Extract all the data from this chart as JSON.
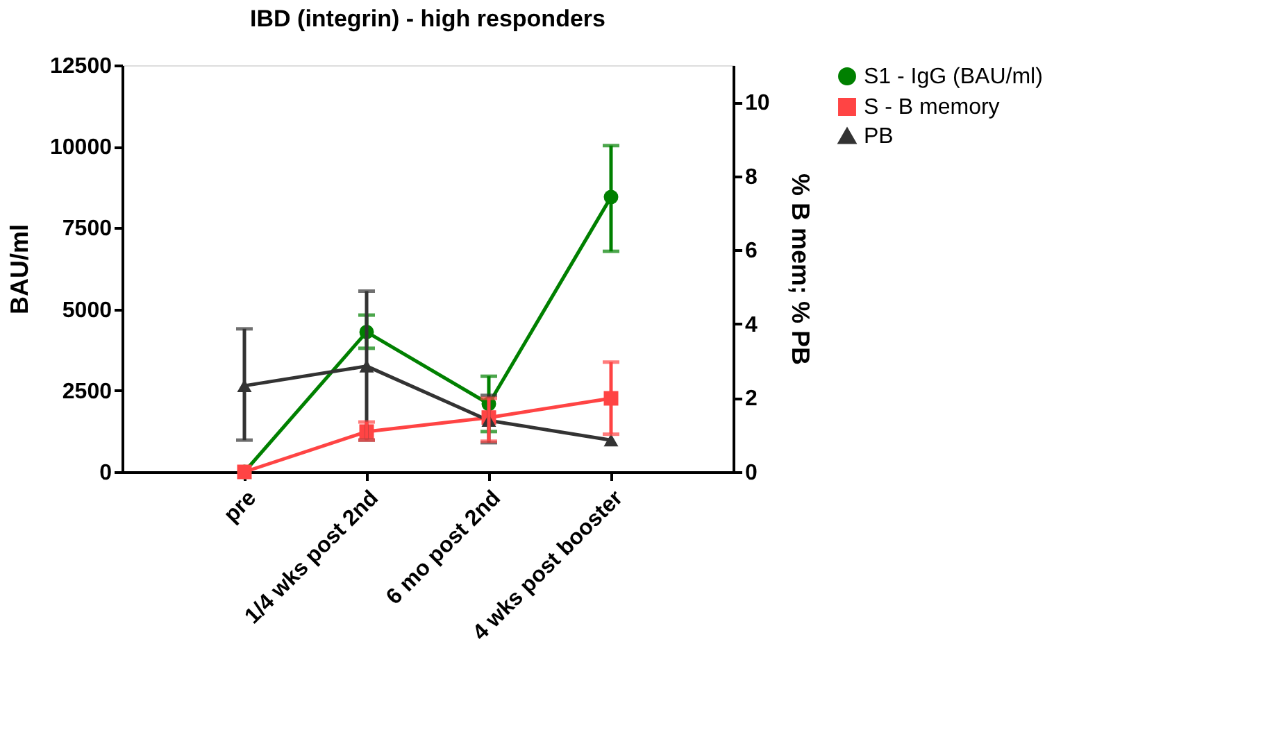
{
  "chart_data": {
    "type": "line",
    "title": "IBD (integrin) - high responders",
    "ylabel": "BAU/ml",
    "y2label": "% B mem; % PB",
    "categories": [
      "pre",
      "1/4 wks post 2nd",
      "6 mo post 2nd",
      "4 wks post booster"
    ],
    "ylim": [
      0,
      12500
    ],
    "yticks": [
      0,
      2500,
      5000,
      7500,
      10000,
      12500
    ],
    "y2lim": [
      0,
      11
    ],
    "y2ticks": [
      0,
      2,
      4,
      6,
      8,
      10
    ],
    "grid": false,
    "legend": "right",
    "series": [
      {
        "name": "S1 - IgG (BAU/ml)",
        "color": "#008000",
        "marker": "circle",
        "values": [
          0,
          4300,
          2090,
          8450
        ],
        "errors": [
          null,
          [
            3800,
            4820
          ],
          [
            1240,
            2940
          ],
          [
            6780,
            10030
          ]
        ]
      },
      {
        "name": "S - B memory",
        "color": "#ff4444",
        "marker": "square",
        "axis": "y2",
        "values": [
          0,
          1.09,
          1.47,
          1.99
        ],
        "errors": [
          null,
          [
            0.86,
            1.35
          ],
          [
            0.83,
            1.99
          ],
          [
            1.02,
            2.97
          ]
        ]
      },
      {
        "name": "PB",
        "color": "#333333",
        "marker": "triangle",
        "axis": "y2",
        "values": [
          2.33,
          2.86,
          1.39,
          0.86
        ],
        "errors": [
          [
            0.86,
            3.87
          ],
          [
            0.86,
            4.89
          ],
          [
            0.79,
            2.07
          ],
          null
        ]
      }
    ]
  }
}
